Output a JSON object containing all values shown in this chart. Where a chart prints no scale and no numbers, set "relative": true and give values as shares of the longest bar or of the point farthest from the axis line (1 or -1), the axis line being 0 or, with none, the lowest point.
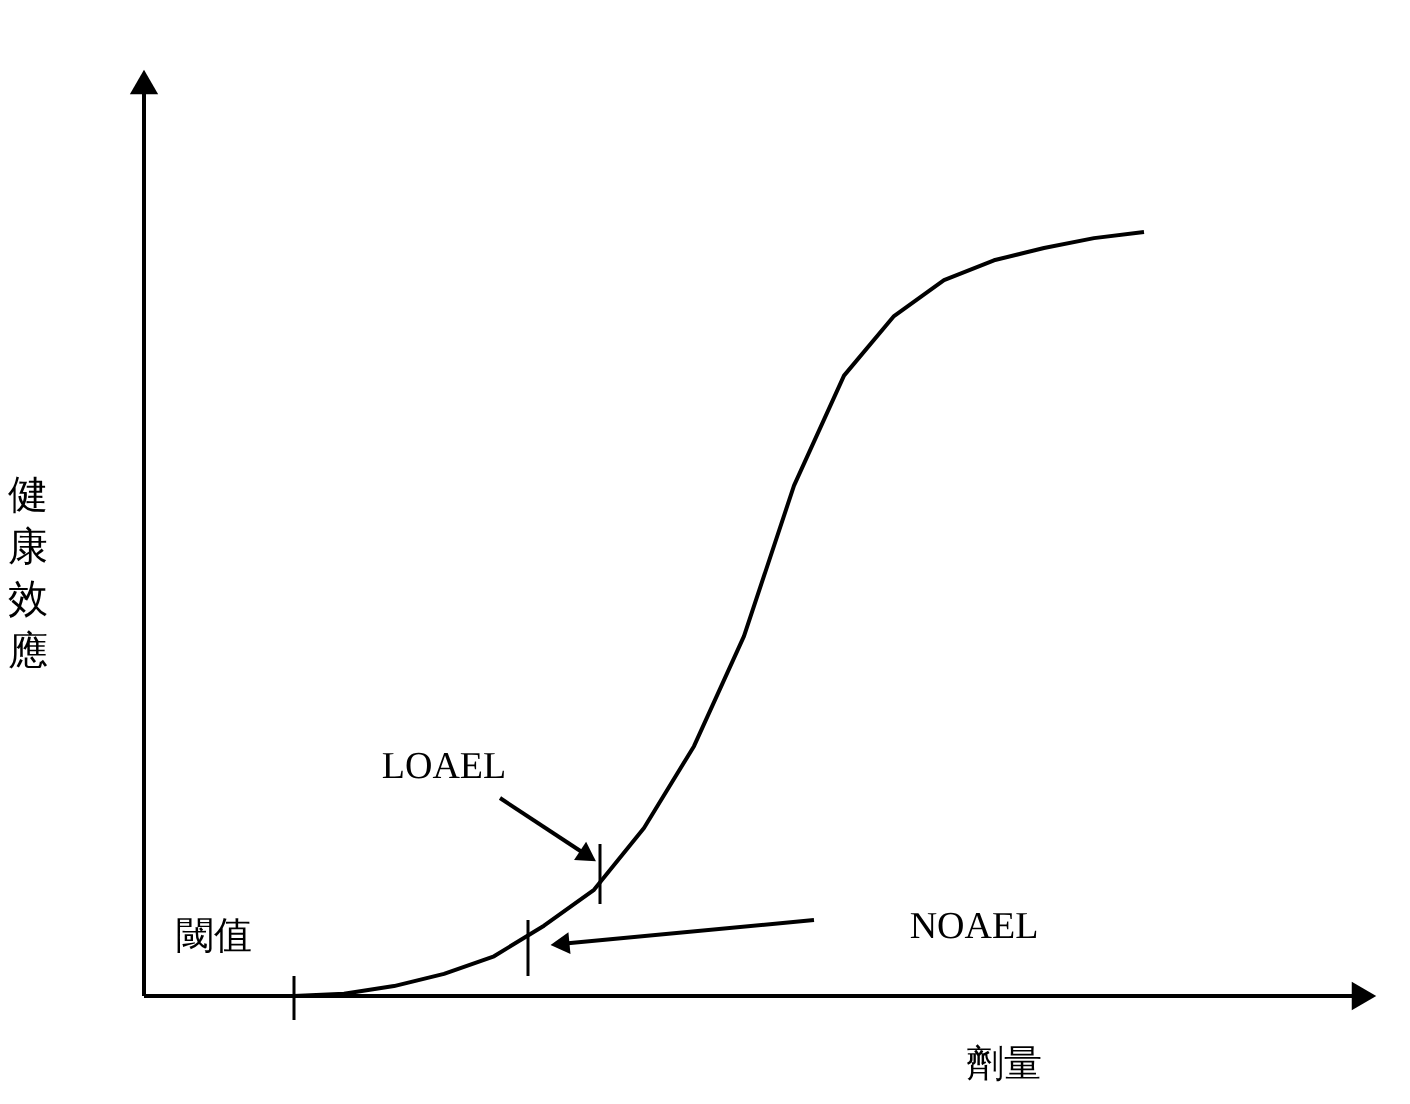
{
  "chart_data": {
    "type": "line",
    "relative": true,
    "xlabel": "劑量",
    "ylabel": "健康效應",
    "categories": [
      null,
      null,
      null,
      null,
      null,
      null,
      null,
      null,
      null,
      null,
      null,
      null,
      null,
      null,
      null,
      null,
      null,
      null,
      null,
      null,
      null,
      null,
      null,
      null,
      null
    ],
    "series": [
      {
        "color": "#000000",
        "values": [
          null,
          null,
          null,
          0,
          0.003,
          0.013,
          0.029,
          0.052,
          0.092,
          0.139,
          0.22,
          0.327,
          0.471,
          0.668,
          0.812,
          0.89,
          0.937,
          0.963,
          0.979,
          0.992,
          1,
          null,
          null,
          null,
          null
        ]
      }
    ],
    "annotations": [
      "閾值",
      "LOAEL",
      "NOAEL"
    ],
    "marker": "none",
    "line_style": "solid"
  }
}
